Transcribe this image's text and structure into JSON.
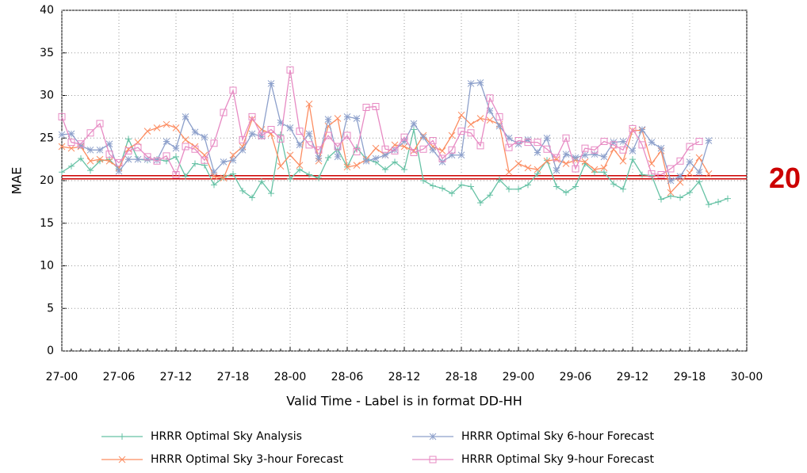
{
  "chart_data": {
    "type": "line",
    "xlabel": "Valid Time - Label is in format DD-HH",
    "ylabel": "MAE",
    "x": [
      0,
      1,
      2,
      3,
      4,
      5,
      6,
      7,
      8,
      9,
      10,
      11,
      12,
      13,
      14,
      15,
      16,
      17,
      18,
      19,
      20,
      21,
      22,
      23,
      24,
      25,
      26,
      27,
      28,
      29,
      30,
      31,
      32,
      33,
      34,
      35,
      36,
      37,
      38,
      39,
      40,
      41,
      42,
      43,
      44,
      45,
      46,
      47,
      48,
      49,
      50,
      51,
      52,
      53,
      54,
      55,
      56,
      57,
      58,
      59,
      60,
      61,
      62,
      63,
      64,
      65,
      66,
      67,
      68,
      69,
      70
    ],
    "xlim": [
      0,
      72
    ],
    "xticks": [
      {
        "value": 0,
        "label": "27-00"
      },
      {
        "value": 6,
        "label": "27-06"
      },
      {
        "value": 12,
        "label": "27-12"
      },
      {
        "value": 18,
        "label": "27-18"
      },
      {
        "value": 24,
        "label": "28-00"
      },
      {
        "value": 30,
        "label": "28-06"
      },
      {
        "value": 36,
        "label": "28-12"
      },
      {
        "value": 42,
        "label": "28-18"
      },
      {
        "value": 48,
        "label": "29-00"
      },
      {
        "value": 54,
        "label": "29-06"
      },
      {
        "value": 60,
        "label": "29-12"
      },
      {
        "value": 66,
        "label": "29-18"
      },
      {
        "value": 72,
        "label": "30-00"
      }
    ],
    "ylim": [
      0,
      40
    ],
    "yticks": [
      0,
      5,
      10,
      15,
      20,
      25,
      30,
      35,
      40
    ],
    "grid": true,
    "reference_line": {
      "value": 20.4,
      "label": "20",
      "color": "#cc0000"
    },
    "series": [
      {
        "name": "HRRR Optimal Sky Analysis",
        "color": "#66c2a5",
        "marker": "plus",
        "values": [
          21,
          21.7,
          22.6,
          21.2,
          22.3,
          22.5,
          21.3,
          24.9,
          22.5,
          22.4,
          22.5,
          22.3,
          22.8,
          20.5,
          22,
          21.8,
          19.5,
          20.4,
          20.8,
          18.8,
          18,
          19.9,
          18.5,
          25.4,
          20.2,
          21.3,
          20.7,
          20.3,
          22.7,
          23.7,
          21.6,
          23.9,
          22.5,
          22.2,
          21.3,
          22.2,
          21.3,
          26,
          20,
          19.4,
          19.1,
          18.5,
          19.5,
          19.3,
          17.4,
          18.3,
          20.1,
          19,
          19,
          19.5,
          20.8,
          22.4,
          19.3,
          18.6,
          19.3,
          22,
          21,
          21,
          19.6,
          19,
          22.5,
          20.7,
          20.6,
          17.8,
          18.2,
          18,
          18.6,
          19.9,
          17.2,
          17.5,
          17.9
        ]
      },
      {
        "name": "HRRR Optimal Sky 3-hour Forecast",
        "color": "#fc8d62",
        "marker": "cross",
        "values": [
          24,
          23.8,
          24,
          22.3,
          22.5,
          22.3,
          21.5,
          23.7,
          24.5,
          25.8,
          26.2,
          26.6,
          26.2,
          24.8,
          24,
          23,
          20.5,
          20.3,
          23,
          24,
          27.2,
          26,
          25.5,
          21.7,
          23,
          21.8,
          29,
          22.3,
          26.4,
          27.3,
          21.6,
          21.8,
          22.5,
          23.8,
          23,
          24.2,
          24,
          23.5,
          25.3,
          24,
          23.5,
          25.3,
          27.7,
          26.6,
          27.3,
          27.1,
          26.6,
          21,
          22,
          21.5,
          21.3,
          22.3,
          22.5,
          22,
          22.4,
          22.2,
          21.3,
          21.5,
          23.7,
          22.3,
          25.9,
          25.9,
          22,
          23.5,
          18.6,
          19.8,
          20.9,
          22.7,
          20.8,
          null,
          null
        ]
      },
      {
        "name": "HRRR Optimal Sky 6-hour Forecast",
        "color": "#8da0cb",
        "marker": "star",
        "values": [
          25.4,
          25.5,
          24.1,
          23.6,
          23.6,
          24.3,
          21.1,
          22.5,
          22.5,
          22.5,
          22.4,
          24.6,
          23.8,
          27.5,
          25.7,
          25.1,
          21,
          22.2,
          22.4,
          23.6,
          25.5,
          25.2,
          31.4,
          26.8,
          26.2,
          24.2,
          25.5,
          22.6,
          27.2,
          22.8,
          27.5,
          27.3,
          22.3,
          22.6,
          23,
          23.6,
          24.6,
          26.7,
          25.1,
          23.6,
          22.2,
          23,
          23,
          31.4,
          31.5,
          28.2,
          26.4,
          25,
          24.3,
          24.8,
          23.3,
          25,
          21.2,
          23.1,
          22.7,
          23,
          23.1,
          22.8,
          24.5,
          24.6,
          23.5,
          26,
          24.5,
          23.8,
          20,
          20.5,
          22.2,
          21,
          24.7,
          null,
          null
        ]
      },
      {
        "name": "HRRR Optimal Sky 9-hour Forecast",
        "color": "#e78ac3",
        "marker": "square",
        "values": [
          27.5,
          24.5,
          24.3,
          25.6,
          26.7,
          23.1,
          22.1,
          23.5,
          23.9,
          22.8,
          22.3,
          22.9,
          20.7,
          24,
          23.7,
          22.4,
          24.4,
          28,
          30.6,
          24.8,
          27.5,
          25.3,
          26,
          24.9,
          33,
          25.8,
          24.2,
          23.6,
          25.3,
          24,
          25.3,
          23.4,
          28.6,
          28.7,
          23.7,
          23.5,
          25.1,
          23.3,
          23.7,
          24.7,
          22.6,
          23.6,
          25.8,
          25.6,
          24.1,
          29.7,
          27.5,
          23.9,
          24.7,
          24.5,
          24.5,
          23.7,
          22.7,
          25,
          21.4,
          23.8,
          23.6,
          24.6,
          24.2,
          23.6,
          26.1,
          24.2,
          20.8,
          20.7,
          21.4,
          22.3,
          24,
          24.6,
          null,
          null,
          null
        ]
      }
    ]
  }
}
